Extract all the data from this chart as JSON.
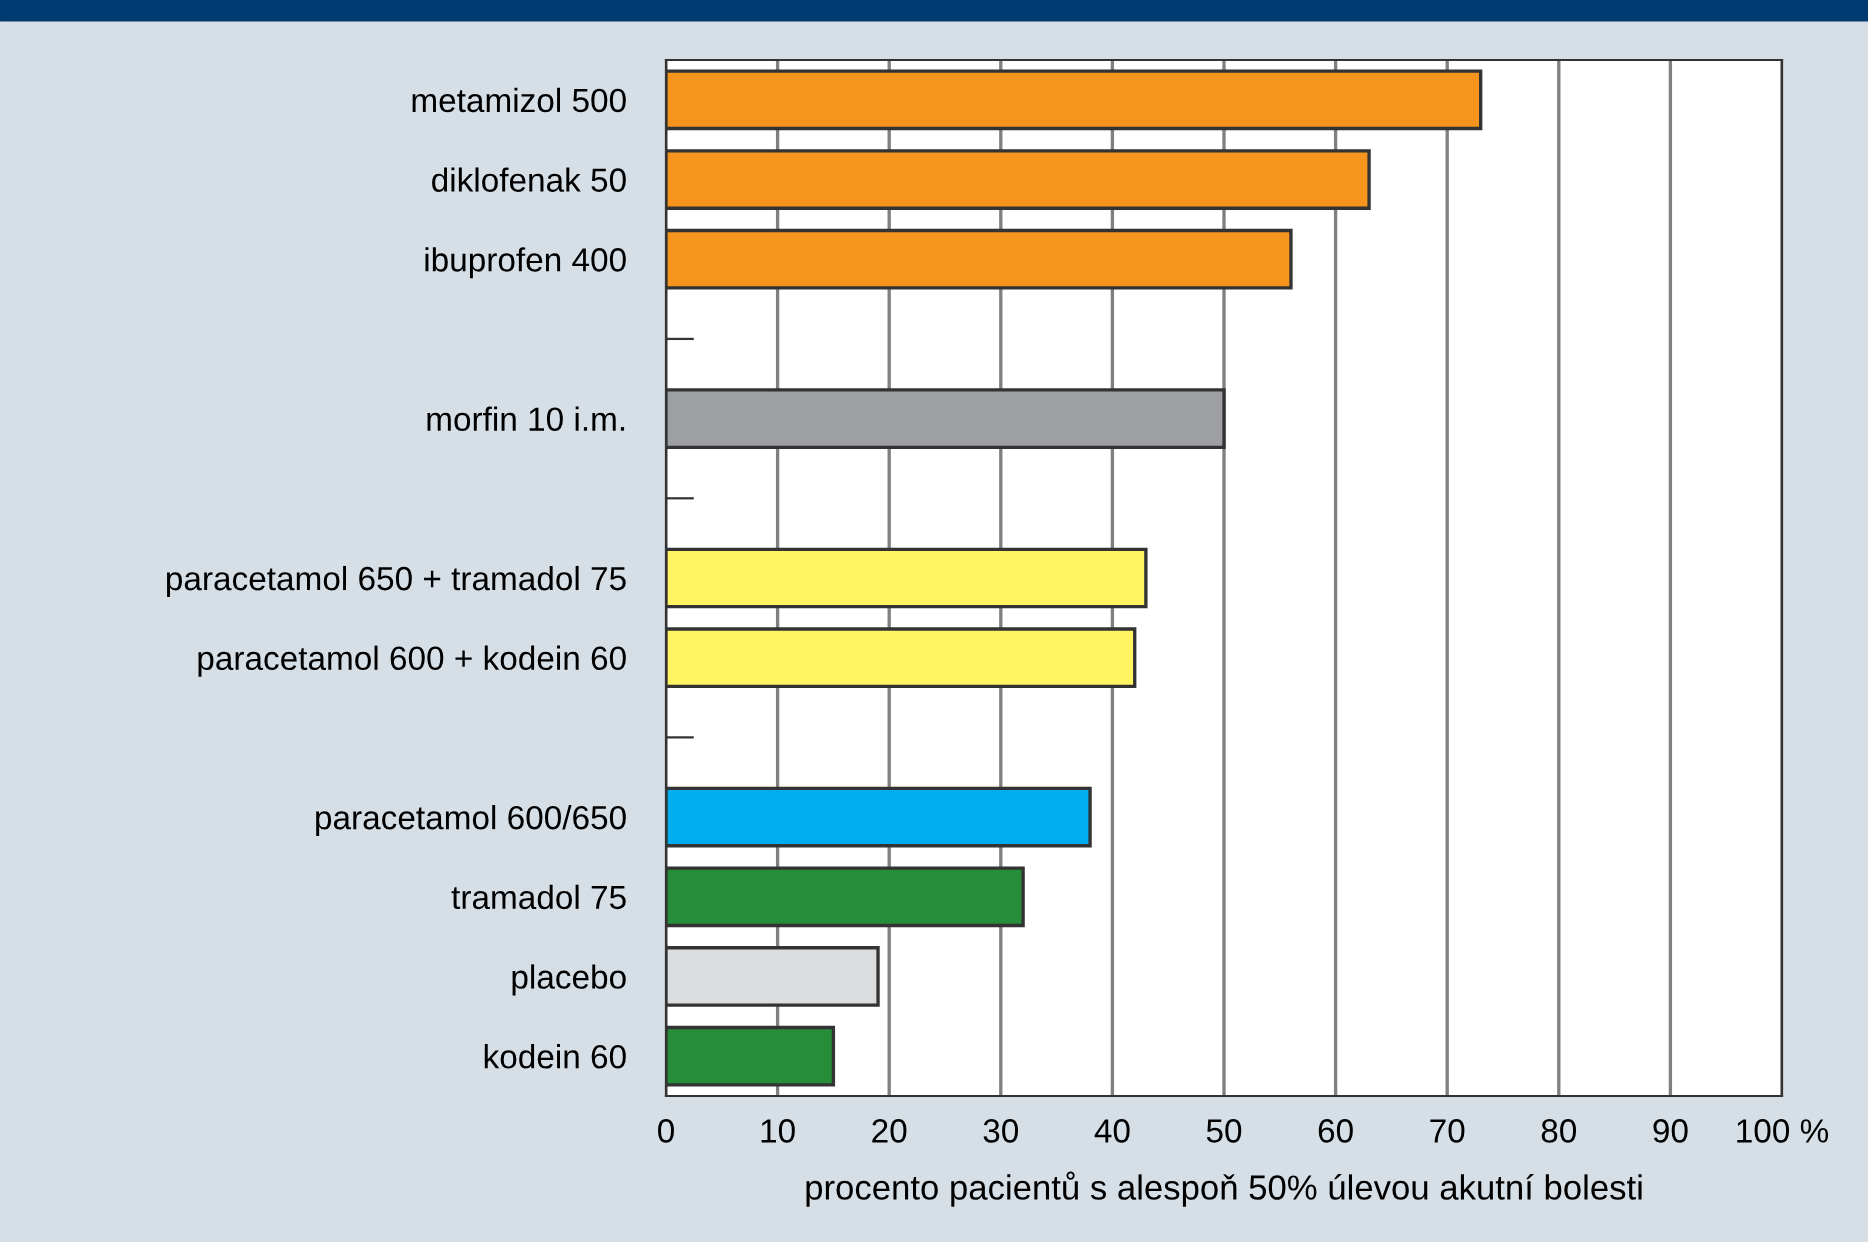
{
  "chart_data": {
    "type": "bar",
    "orientation": "horizontal",
    "xlabel": "procento pacientů s alespoň 50% úlevou akutní bolesti",
    "categories": [
      "metamizol 500",
      "diklofenak 50",
      "ibuprofen 400",
      null,
      "morfin 10 i.m.",
      null,
      "paracetamol 650 + tramadol 75",
      "paracetamol 600 + kodein 60",
      null,
      "paracetamol 600/650",
      "tramadol 75",
      "placebo",
      "kodein 60"
    ],
    "values": [
      73,
      63,
      56,
      null,
      50,
      null,
      43,
      42,
      null,
      38,
      32,
      19,
      15
    ],
    "colors": [
      "#f7941d",
      "#f7941d",
      "#f7941d",
      null,
      "#9d9fa2",
      null,
      "#fff462",
      "#fff462",
      null,
      "#00aeef",
      "#268e38",
      "#dcdddf",
      "#268e38"
    ],
    "xlim": [
      0,
      100
    ],
    "xticks": [
      0,
      10,
      20,
      30,
      40,
      50,
      60,
      70,
      80,
      90,
      {
        "value": 100,
        "label": "100 %"
      }
    ],
    "grid": "x"
  }
}
